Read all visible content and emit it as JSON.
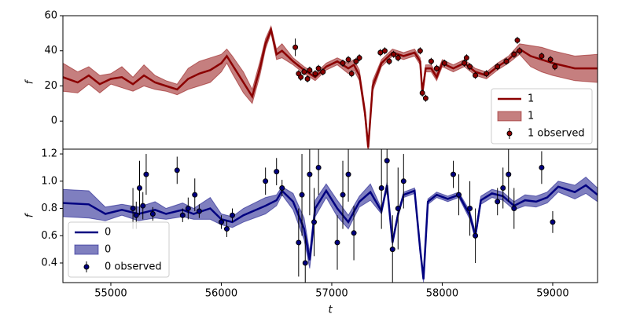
{
  "chart_data": [
    {
      "type": "line",
      "ylabel": "f",
      "xlim": [
        54566,
        59406
      ],
      "ylim": [
        -16,
        60
      ],
      "yticks": [
        0,
        20,
        40,
        60
      ],
      "legend": "lower right",
      "series": [
        {
          "name": "1",
          "kind": "line",
          "color": "#8b0000",
          "x": [
            54566,
            54700,
            54800,
            54900,
            55000,
            55100,
            55200,
            55300,
            55400,
            55500,
            55600,
            55700,
            55800,
            55900,
            56000,
            56050,
            56100,
            56200,
            56280,
            56350,
            56400,
            56450,
            56500,
            56550,
            56650,
            56750,
            56850,
            56950,
            57050,
            57150,
            57200,
            57250,
            57300,
            57330,
            57370,
            57450,
            57550,
            57650,
            57750,
            57800,
            57820,
            57850,
            57900,
            57950,
            58000,
            58100,
            58200,
            58300,
            58400,
            58500,
            58600,
            58700,
            58800,
            58900,
            59000,
            59200,
            59406
          ],
          "values": [
            25,
            22,
            26,
            21,
            24,
            25,
            21,
            26,
            22,
            20,
            18,
            24,
            27,
            29,
            33,
            37,
            32,
            22,
            14,
            30,
            44,
            52,
            38,
            40,
            34,
            29,
            25,
            31,
            34,
            30,
            32,
            26,
            5,
            -15,
            20,
            33,
            39,
            37,
            39,
            34,
            16,
            30,
            30,
            25,
            33,
            30,
            33,
            28,
            26,
            31,
            35,
            41,
            37,
            35,
            33,
            30,
            30
          ]
        },
        {
          "name": "1",
          "kind": "band",
          "color": "#8b0000",
          "x": [
            54566,
            54700,
            54800,
            54900,
            55000,
            55100,
            55200,
            55300,
            55400,
            55500,
            55600,
            55700,
            55800,
            55900,
            56000,
            56050,
            56100,
            56200,
            56280,
            56350,
            56400,
            56450,
            56500,
            56550,
            56650,
            56750,
            56850,
            56950,
            57050,
            57150,
            57200,
            57250,
            57300,
            57330,
            57370,
            57450,
            57550,
            57650,
            57750,
            57800,
            57820,
            57850,
            57900,
            57950,
            58000,
            58100,
            58200,
            58300,
            58400,
            58500,
            58600,
            58700,
            58800,
            58900,
            59000,
            59200,
            59406
          ],
          "lower": [
            17,
            16,
            21,
            16,
            21,
            19,
            17,
            20,
            18,
            17,
            15,
            18,
            20,
            22,
            28,
            33,
            27,
            16,
            10,
            26,
            41,
            50,
            35,
            36,
            32,
            27,
            23,
            29,
            32,
            27,
            29,
            23,
            2,
            -18,
            17,
            31,
            37,
            35,
            37,
            32,
            14,
            28,
            28,
            23,
            31,
            28,
            31,
            26,
            24,
            29,
            33,
            38,
            31,
            28,
            26,
            23,
            22
          ],
          "upper": [
            33,
            28,
            31,
            26,
            27,
            31,
            25,
            32,
            26,
            23,
            21,
            30,
            34,
            36,
            38,
            41,
            37,
            28,
            18,
            34,
            47,
            54,
            41,
            44,
            36,
            31,
            27,
            33,
            36,
            33,
            35,
            29,
            8,
            -12,
            23,
            35,
            41,
            39,
            41,
            36,
            18,
            32,
            32,
            27,
            35,
            32,
            35,
            30,
            28,
            33,
            37,
            44,
            43,
            42,
            40,
            37,
            38
          ]
        },
        {
          "name": "1 observed",
          "kind": "errorbar",
          "color": "#8b0000",
          "x": [
            56670,
            56700,
            56720,
            56750,
            56780,
            56800,
            56850,
            56880,
            56920,
            57100,
            57150,
            57180,
            57220,
            57250,
            57440,
            57480,
            57520,
            57560,
            57600,
            57800,
            57820,
            57850,
            57900,
            57950,
            58020,
            58200,
            58220,
            58250,
            58300,
            58400,
            58500,
            58580,
            58650,
            58680,
            58700,
            58900,
            58980,
            59020
          ],
          "values": [
            42,
            27,
            25,
            28,
            24,
            29,
            27,
            30,
            28,
            33,
            35,
            27,
            34,
            36,
            39,
            40,
            34,
            38,
            36,
            40,
            16,
            13,
            34,
            30,
            33,
            33,
            36,
            31,
            26,
            27,
            31,
            34,
            38,
            46,
            40,
            37,
            35,
            31
          ],
          "errors": [
            5,
            2,
            2,
            2,
            2,
            2,
            2,
            2,
            2,
            2,
            2,
            2,
            2,
            2,
            2,
            2,
            2,
            2,
            2,
            2,
            2,
            2,
            2,
            2,
            2,
            2,
            2,
            2,
            2,
            2,
            2,
            2,
            2,
            2,
            2,
            2,
            2,
            2
          ]
        }
      ]
    },
    {
      "type": "line",
      "ylabel": "f",
      "xlabel": "t",
      "xlim": [
        54566,
        59406
      ],
      "ylim": [
        0.256,
        1.235
      ],
      "xticks": [
        55000,
        56000,
        57000,
        58000,
        59000
      ],
      "yticks": [
        0.4,
        0.6,
        0.8,
        {
          "value": 1,
          "label": "1.0"
        },
        1.2
      ],
      "legend": "lower left",
      "series": [
        {
          "name": "0",
          "kind": "line",
          "color": "#000080",
          "x": [
            54566,
            54800,
            54950,
            55100,
            55250,
            55400,
            55500,
            55650,
            55750,
            55900,
            56000,
            56100,
            56200,
            56400,
            56500,
            56550,
            56650,
            56750,
            56800,
            56850,
            56950,
            57050,
            57150,
            57250,
            57350,
            57450,
            57500,
            57550,
            57600,
            57650,
            57750,
            57800,
            57830,
            57870,
            57950,
            58050,
            58150,
            58250,
            58300,
            58350,
            58450,
            58550,
            58650,
            58750,
            58850,
            58950,
            59050,
            59200,
            59300,
            59406
          ],
          "values": [
            0.84,
            0.83,
            0.76,
            0.79,
            0.76,
            0.79,
            0.76,
            0.79,
            0.76,
            0.8,
            0.72,
            0.7,
            0.75,
            0.82,
            0.86,
            0.93,
            0.85,
            0.65,
            0.42,
            0.8,
            0.93,
            0.8,
            0.7,
            0.85,
            0.92,
            0.78,
            0.97,
            0.55,
            0.76,
            0.9,
            0.93,
            0.5,
            0.28,
            0.85,
            0.9,
            0.87,
            0.9,
            0.75,
            0.6,
            0.86,
            0.91,
            0.89,
            0.82,
            0.86,
            0.85,
            0.88,
            0.96,
            0.92,
            0.97,
            0.9
          ]
        },
        {
          "name": "0",
          "kind": "band",
          "color": "#000080",
          "x": [
            54566,
            54800,
            54950,
            55100,
            55250,
            55400,
            55500,
            55650,
            55750,
            55900,
            56000,
            56100,
            56200,
            56400,
            56500,
            56550,
            56650,
            56750,
            56800,
            56850,
            56950,
            57050,
            57150,
            57250,
            57350,
            57450,
            57500,
            57550,
            57600,
            57650,
            57750,
            57800,
            57830,
            57870,
            57950,
            58050,
            58150,
            58250,
            58300,
            58350,
            58450,
            58550,
            58650,
            58750,
            58850,
            58950,
            59050,
            59200,
            59300,
            59406
          ],
          "lower": [
            0.74,
            0.73,
            0.71,
            0.75,
            0.71,
            0.73,
            0.72,
            0.74,
            0.72,
            0.72,
            0.68,
            0.66,
            0.7,
            0.76,
            0.82,
            0.9,
            0.79,
            0.57,
            0.36,
            0.74,
            0.88,
            0.74,
            0.65,
            0.81,
            0.86,
            0.76,
            0.95,
            0.53,
            0.74,
            0.88,
            0.91,
            0.48,
            0.26,
            0.83,
            0.88,
            0.85,
            0.88,
            0.72,
            0.57,
            0.83,
            0.88,
            0.86,
            0.79,
            0.82,
            0.81,
            0.84,
            0.92,
            0.87,
            0.91,
            0.85
          ],
          "upper": [
            0.94,
            0.93,
            0.81,
            0.83,
            0.81,
            0.85,
            0.8,
            0.84,
            0.8,
            0.88,
            0.76,
            0.74,
            0.8,
            0.88,
            0.9,
            0.96,
            0.91,
            0.73,
            0.48,
            0.86,
            0.98,
            0.86,
            0.75,
            0.89,
            0.98,
            0.8,
            0.99,
            0.57,
            0.78,
            0.92,
            0.95,
            0.52,
            0.3,
            0.87,
            0.92,
            0.89,
            0.92,
            0.78,
            0.63,
            0.89,
            0.94,
            0.92,
            0.85,
            0.9,
            0.89,
            0.92,
            1,
            0.97,
            1.03,
            0.95
          ]
        },
        {
          "name": "0 observed",
          "kind": "errorbar",
          "color": "#000080",
          "x": [
            55200,
            55230,
            55260,
            55290,
            55320,
            55380,
            55600,
            55650,
            55700,
            55760,
            55800,
            56000,
            56050,
            56100,
            56400,
            56500,
            56550,
            56700,
            56730,
            56760,
            56800,
            56840,
            56880,
            57050,
            57100,
            57150,
            57200,
            57450,
            57500,
            57550,
            57600,
            57650,
            58100,
            58150,
            58250,
            58300,
            58500,
            58550,
            58600,
            58650,
            58900,
            59000
          ],
          "values": [
            0.8,
            0.75,
            0.95,
            0.82,
            1.05,
            0.76,
            1.08,
            0.75,
            0.8,
            0.9,
            0.78,
            0.7,
            0.65,
            0.75,
            1,
            1.07,
            0.95,
            0.55,
            0.9,
            0.4,
            1.05,
            0.7,
            1.1,
            0.55,
            0.9,
            1.05,
            0.62,
            0.95,
            1.15,
            0.5,
            0.8,
            1,
            1.05,
            0.9,
            0.8,
            0.6,
            0.85,
            0.95,
            1.05,
            0.8,
            1.1,
            0.7
          ],
          "errors": [
            0.15,
            0.1,
            0.2,
            0.1,
            0.15,
            0.05,
            0.1,
            0.05,
            0.08,
            0.12,
            0.05,
            0.05,
            0.06,
            0.05,
            0.1,
            0.1,
            0.06,
            0.25,
            0.3,
            0.2,
            0.3,
            0.25,
            0.2,
            0.2,
            0.25,
            0.2,
            0.2,
            0.3,
            0.25,
            0.25,
            0.3,
            0.2,
            0.1,
            0.15,
            0.2,
            0.2,
            0.1,
            0.15,
            0.2,
            0.15,
            0.12,
            0.08
          ]
        }
      ]
    }
  ]
}
